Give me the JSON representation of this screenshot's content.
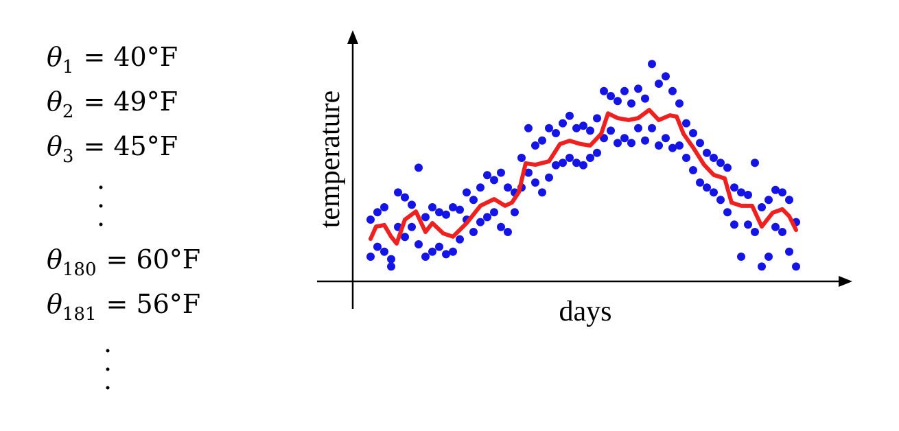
{
  "equations": [
    {
      "symbol": "θ",
      "subscript": "1",
      "rhs": "= 40°F"
    },
    {
      "symbol": "θ",
      "subscript": "2",
      "rhs": "= 49°F"
    },
    {
      "symbol": "θ",
      "subscript": "3",
      "rhs": "= 45°F"
    },
    {
      "symbol": "θ",
      "subscript": "180",
      "rhs": "= 60°F"
    },
    {
      "symbol": "θ",
      "subscript": "181",
      "rhs": "= 56°F"
    }
  ],
  "chart_data": {
    "type": "scatter",
    "xlabel": "days",
    "ylabel": "temperature",
    "xlim": [
      0,
      363
    ],
    "ylim": [
      0,
      100
    ],
    "series": [
      {
        "type": "scatter",
        "color": "#1414e6",
        "x": [
          13,
          13,
          18,
          18,
          23,
          23,
          28,
          28,
          33,
          33,
          38,
          38,
          43,
          43,
          48,
          48,
          53,
          53,
          58,
          58,
          63,
          63,
          68,
          68,
          73,
          73,
          78,
          78,
          83,
          83,
          88,
          88,
          93,
          93,
          98,
          98,
          103,
          103,
          108,
          108,
          113,
          113,
          118,
          118,
          123,
          123,
          128,
          128,
          133,
          133,
          138,
          138,
          143,
          143,
          148,
          148,
          153,
          153,
          158,
          158,
          163,
          163,
          168,
          168,
          173,
          173,
          178,
          178,
          183,
          183,
          188,
          188,
          193,
          193,
          198,
          198,
          203,
          203,
          208,
          208,
          213,
          213,
          218,
          218,
          223,
          223,
          228,
          228,
          233,
          233,
          238,
          238,
          243,
          243,
          248,
          248,
          253,
          253,
          258,
          258,
          263,
          263,
          268,
          268,
          273,
          273,
          278,
          278,
          283,
          283,
          288,
          288,
          293,
          293,
          298,
          298,
          303,
          303,
          308,
          308,
          313,
          313,
          318,
          318,
          323,
          323
        ],
        "values": [
          25,
          10,
          28,
          14,
          30,
          12,
          9,
          6,
          36,
          22,
          34,
          18,
          31,
          22,
          46,
          15,
          26,
          10,
          30,
          12,
          28,
          14,
          27,
          11,
          30,
          12,
          29,
          17,
          36,
          25,
          33,
          20,
          38,
          24,
          43,
          26,
          41,
          28,
          44,
          22,
          38,
          20,
          36,
          28,
          50,
          38,
          62,
          44,
          55,
          40,
          57,
          36,
          62,
          42,
          60,
          47,
          64,
          48,
          67,
          50,
          62,
          48,
          63,
          47,
          61,
          50,
          66,
          52,
          77,
          58,
          75,
          61,
          73,
          56,
          77,
          58,
          72,
          56,
          78,
          62,
          74,
          57,
          88,
          62,
          80,
          55,
          83,
          58,
          77,
          54,
          72,
          55,
          64,
          50,
          60,
          45,
          56,
          40,
          52,
          38,
          50,
          36,
          48,
          33,
          46,
          28,
          38,
          23,
          36,
          10,
          35,
          23,
          48,
          20,
          30,
          6,
          33,
          10,
          37,
          22,
          36,
          20,
          33,
          12,
          24,
          6
        ]
      },
      {
        "type": "line",
        "color": "#ee2020",
        "x": [
          13,
          17,
          23,
          28,
          32,
          38,
          46,
          53,
          58,
          66,
          73,
          83,
          93,
          103,
          111,
          116,
          121,
          126,
          133,
          143,
          151,
          158,
          166,
          173,
          181,
          186,
          193,
          201,
          208,
          216,
          223,
          231,
          236,
          241,
          248,
          256,
          263,
          271,
          276,
          283,
          291,
          298,
          306,
          313,
          318,
          323
        ],
        "values": [
          17.2,
          22.2,
          22.8,
          18.1,
          15.3,
          25,
          28.3,
          20,
          23.6,
          19.4,
          18.1,
          23.6,
          30.6,
          33.3,
          30.6,
          31.9,
          36.1,
          47.8,
          47.2,
          48.6,
          55.6,
          56.9,
          55.6,
          55,
          59.7,
          68,
          66.1,
          65.3,
          66.1,
          69.4,
          65.3,
          67.2,
          66.7,
          59.7,
          54.2,
          47.2,
          43.1,
          41.7,
          31.9,
          30.6,
          30.6,
          22.2,
          27.8,
          29.2,
          26.4,
          20.8
        ]
      }
    ]
  }
}
